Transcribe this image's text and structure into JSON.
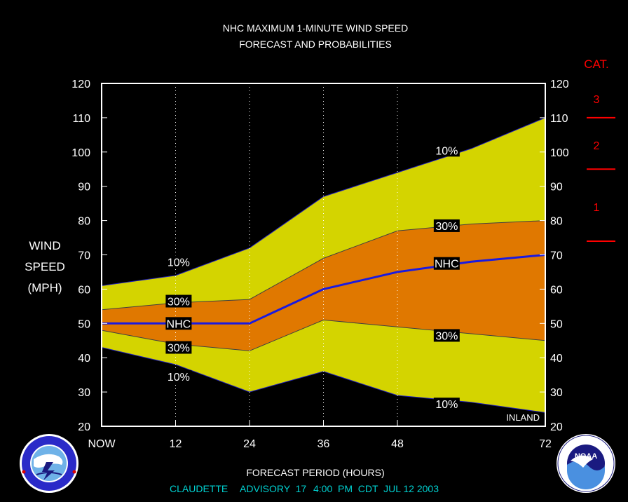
{
  "chart_data": {
    "type": "area",
    "title": "NHC MAXIMUM 1-MINUTE WIND SPEED",
    "subtitle": "FORECAST AND PROBABILITIES",
    "xlabel": "FORECAST PERIOD (HOURS)",
    "ylabel_lines": [
      "WIND",
      "SPEED",
      "(MPH)"
    ],
    "x_ticks": [
      0,
      12,
      24,
      36,
      48,
      72
    ],
    "x_tick_labels": [
      "NOW",
      "12",
      "24",
      "36",
      "48",
      "72"
    ],
    "xlim": [
      0,
      72
    ],
    "ylim": [
      20,
      120
    ],
    "y_ticks": [
      20,
      30,
      40,
      50,
      60,
      70,
      80,
      90,
      100,
      110,
      120
    ],
    "vertical_grid": "dotted at 12, 24, 36, 48",
    "x": [
      0,
      12,
      24,
      36,
      48,
      60,
      72
    ],
    "series": [
      {
        "name": "10%",
        "role": "upper-10",
        "values": [
          61,
          64,
          72,
          87,
          94,
          101,
          110
        ]
      },
      {
        "name": "30%",
        "role": "upper-30",
        "values": [
          54,
          56,
          57,
          69,
          77,
          79,
          80
        ]
      },
      {
        "name": "NHC",
        "role": "forecast",
        "values": [
          50,
          50,
          50,
          60,
          65,
          68,
          70
        ]
      },
      {
        "name": "30%",
        "role": "lower-30",
        "values": [
          48,
          44,
          42,
          51,
          49,
          47,
          45
        ]
      },
      {
        "name": "10%",
        "role": "lower-10",
        "values": [
          43,
          38,
          30,
          36,
          29,
          27,
          24
        ]
      }
    ],
    "labels": [
      {
        "text": "10%",
        "x": 12.5,
        "y": 68
      },
      {
        "text": "30%",
        "x": 12.5,
        "y": 56.5
      },
      {
        "text": "NHC",
        "x": 12.5,
        "y": 50
      },
      {
        "text": "30%",
        "x": 12.5,
        "y": 43
      },
      {
        "text": "10%",
        "x": 12.5,
        "y": 34.5
      },
      {
        "text": "10%",
        "x": 56,
        "y": 100.5
      },
      {
        "text": "30%",
        "x": 56,
        "y": 78.5
      },
      {
        "text": "NHC",
        "x": 56,
        "y": 67.5
      },
      {
        "text": "30%",
        "x": 56,
        "y": 46.5
      },
      {
        "text": "10%",
        "x": 56,
        "y": 26.5
      }
    ],
    "inland_label": "INLAND",
    "category_header": "CAT.",
    "categories": [
      {
        "label": "3",
        "label_mph": 115.5,
        "line_mph": 110
      },
      {
        "label": "2",
        "label_mph": 102,
        "line_mph": 95
      },
      {
        "label": "1",
        "label_mph": 84,
        "line_mph": 74
      }
    ],
    "colors": {
      "outer_band": "#d4d400",
      "inner_band": "#e07800",
      "forecast_line": "#1a1ae0",
      "category": "#ff0000",
      "footer": "#00d0d0"
    }
  },
  "footer": {
    "storm": "CLAUDETTE",
    "advisory": "ADVISORY  17",
    "datetime": "4:00  PM  CDT  JUL 12 2003"
  },
  "logos": {
    "left": {
      "name": "NATIONAL WEATHER SERVICE",
      "icon": "nws-logo-icon"
    },
    "right": {
      "name": "NOAA",
      "icon": "noaa-logo-icon"
    }
  }
}
